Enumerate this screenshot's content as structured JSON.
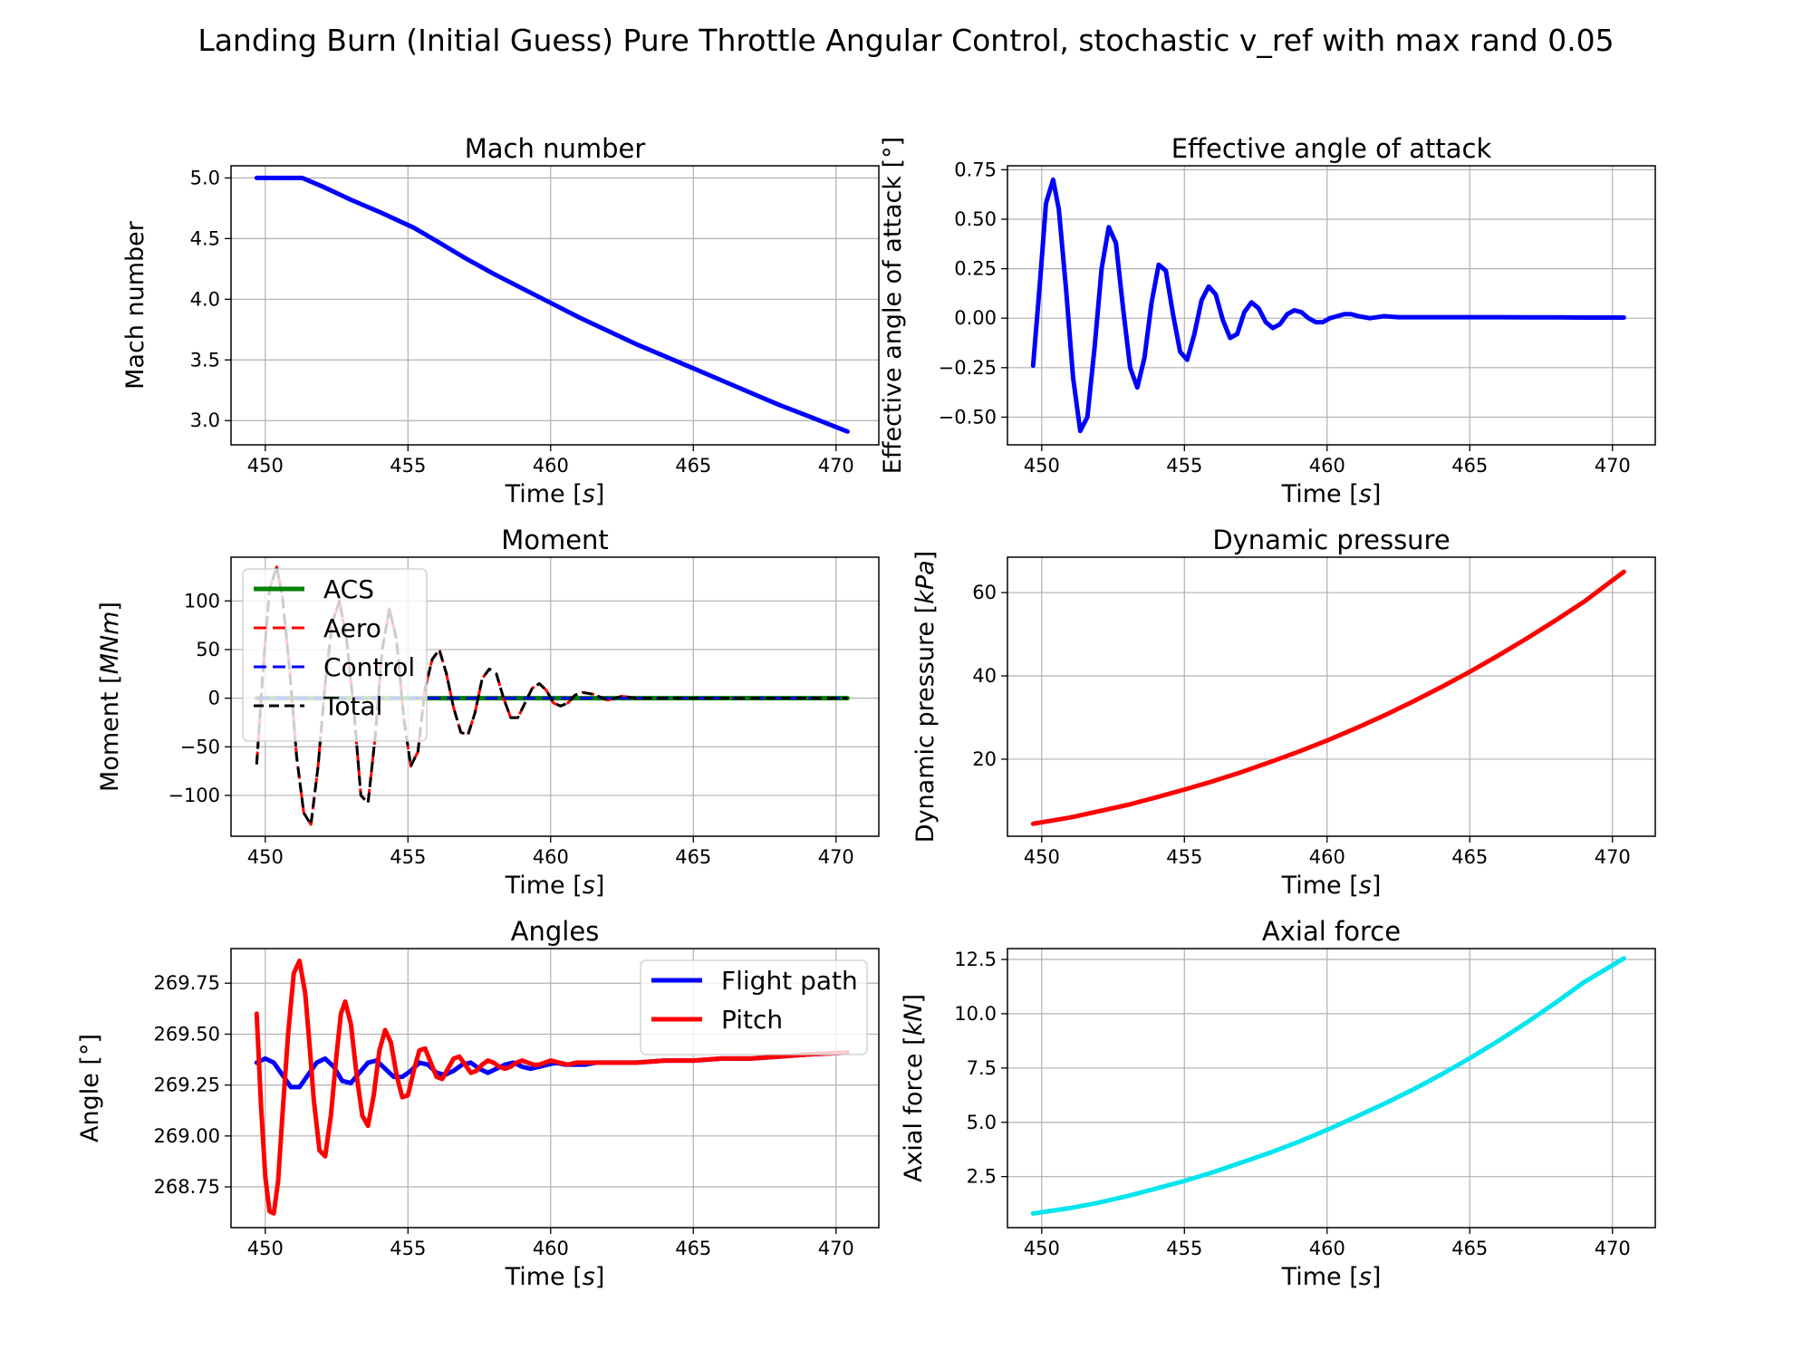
{
  "figure": {
    "suptitle": "Landing Burn (Initial Guess) Pure Throttle Angular Control, stochastic v_ref with max rand 0.05"
  },
  "chart_data": [
    {
      "id": "mach",
      "type": "line",
      "title": "Mach number",
      "xlabel": "Time [s]",
      "ylabel": "Mach number",
      "xlim": [
        448.8,
        471.5
      ],
      "ylim": [
        2.8,
        5.1
      ],
      "xticks": [
        450,
        455,
        460,
        465,
        470
      ],
      "xtick_labels": [
        "450",
        "455",
        "460",
        "465",
        "470"
      ],
      "yticks": [
        3.0,
        3.5,
        4.0,
        4.5,
        5.0
      ],
      "ytick_labels": [
        "3.0",
        "3.5",
        "4.0",
        "4.5",
        "5.0"
      ],
      "grid": true,
      "legend": null,
      "series": [
        {
          "color": "#0000ff",
          "width": 5,
          "dash": "",
          "x": [
            449.7,
            450.5,
            451.3,
            452.0,
            453.0,
            454.0,
            455.2,
            456.0,
            457.0,
            458.0,
            459.0,
            460.0,
            461.0,
            462.0,
            463.0,
            464.0,
            465.0,
            466.0,
            467.0,
            468.0,
            469.0,
            470.4
          ],
          "y": [
            5.0,
            5.0,
            5.0,
            4.93,
            4.82,
            4.72,
            4.59,
            4.48,
            4.34,
            4.21,
            4.09,
            3.97,
            3.85,
            3.74,
            3.63,
            3.53,
            3.43,
            3.33,
            3.23,
            3.13,
            3.04,
            2.91
          ]
        }
      ]
    },
    {
      "id": "aoa",
      "type": "line",
      "title": "Effective angle of attack",
      "xlabel": "Time [s]",
      "ylabel": "Effective angle of attack [°]",
      "xlim": [
        448.8,
        471.5
      ],
      "ylim": [
        -0.64,
        0.77
      ],
      "xticks": [
        450,
        455,
        460,
        465,
        470
      ],
      "xtick_labels": [
        "450",
        "455",
        "460",
        "465",
        "470"
      ],
      "yticks": [
        -0.5,
        -0.25,
        0.0,
        0.25,
        0.5,
        0.75
      ],
      "ytick_labels": [
        "−0.50",
        "−0.25",
        "0.00",
        "0.25",
        "0.50",
        "0.75"
      ],
      "grid": true,
      "legend": null,
      "series": [
        {
          "color": "#0000ff",
          "width": 5,
          "dash": "",
          "x": [
            449.7,
            449.95,
            450.15,
            450.4,
            450.6,
            450.85,
            451.1,
            451.35,
            451.6,
            451.85,
            452.1,
            452.35,
            452.6,
            452.85,
            453.1,
            453.35,
            453.6,
            453.85,
            454.1,
            454.35,
            454.6,
            454.85,
            455.1,
            455.35,
            455.6,
            455.85,
            456.1,
            456.35,
            456.6,
            456.85,
            457.1,
            457.35,
            457.6,
            457.85,
            458.1,
            458.35,
            458.6,
            458.85,
            459.1,
            459.35,
            459.6,
            459.85,
            460.1,
            460.35,
            460.6,
            460.85,
            461.1,
            461.5,
            462.0,
            462.5,
            463.0,
            464.0,
            465.0,
            466.0,
            467.0,
            468.0,
            469.0,
            470.4
          ],
          "y": [
            -0.24,
            0.2,
            0.58,
            0.7,
            0.55,
            0.15,
            -0.3,
            -0.57,
            -0.5,
            -0.15,
            0.25,
            0.46,
            0.38,
            0.05,
            -0.25,
            -0.35,
            -0.2,
            0.08,
            0.27,
            0.24,
            0.02,
            -0.17,
            -0.21,
            -0.08,
            0.09,
            0.16,
            0.12,
            -0.01,
            -0.1,
            -0.08,
            0.03,
            0.08,
            0.05,
            -0.02,
            -0.05,
            -0.03,
            0.02,
            0.04,
            0.03,
            0.0,
            -0.02,
            -0.02,
            0.0,
            0.01,
            0.02,
            0.02,
            0.01,
            0.0,
            0.01,
            0.005,
            0.005,
            0.005,
            0.005,
            0.005,
            0.004,
            0.004,
            0.003,
            0.003
          ]
        }
      ]
    },
    {
      "id": "moment",
      "type": "line",
      "title": "Moment",
      "xlabel": "Time [s]",
      "ylabel": "Moment [MNm]",
      "xlim": [
        448.8,
        471.5
      ],
      "ylim": [
        -142,
        145
      ],
      "xticks": [
        450,
        455,
        460,
        465,
        470
      ],
      "xtick_labels": [
        "450",
        "455",
        "460",
        "465",
        "470"
      ],
      "yticks": [
        -100,
        -50,
        0,
        50,
        100
      ],
      "ytick_labels": [
        "−100",
        "−50",
        "0",
        "50",
        "100"
      ],
      "grid": true,
      "legend": {
        "position": "upper left",
        "entries": [
          "ACS",
          "Aero",
          "Control",
          "Total"
        ]
      },
      "series": [
        {
          "name": "ACS",
          "color": "#008000",
          "width": 5,
          "dash": "",
          "x": [
            449.7,
            470.4
          ],
          "y": [
            0,
            0
          ]
        },
        {
          "name": "Aero",
          "color": "#ff0000",
          "width": 3,
          "dash": "14,7",
          "x": [
            449.7,
            449.95,
            450.15,
            450.4,
            450.6,
            450.85,
            451.1,
            451.35,
            451.6,
            451.85,
            452.1,
            452.35,
            452.6,
            452.85,
            453.1,
            453.35,
            453.6,
            453.85,
            454.1,
            454.35,
            454.6,
            454.85,
            455.1,
            455.35,
            455.6,
            455.85,
            456.1,
            456.35,
            456.6,
            456.85,
            457.1,
            457.35,
            457.6,
            457.85,
            458.1,
            458.35,
            458.6,
            458.85,
            459.1,
            459.35,
            459.6,
            459.85,
            460.1,
            460.35,
            460.6,
            460.85,
            461.1,
            461.5,
            462.0,
            462.5,
            463.0,
            464.0,
            465.0,
            466.0,
            467.0,
            468.0,
            469.0,
            470.4
          ],
          "y": [
            -68,
            40,
            112,
            135,
            105,
            30,
            -60,
            -118,
            -130,
            -70,
            15,
            78,
            100,
            60,
            -10,
            -100,
            -108,
            -40,
            50,
            92,
            60,
            -20,
            -70,
            -55,
            10,
            40,
            50,
            25,
            -10,
            -35,
            -38,
            -15,
            20,
            30,
            25,
            0,
            -20,
            -20,
            -5,
            10,
            15,
            8,
            -5,
            -8,
            -5,
            3,
            6,
            4,
            -2,
            2,
            0,
            0,
            0,
            0,
            0,
            0,
            0,
            0
          ]
        },
        {
          "name": "Control",
          "color": "#0000ff",
          "width": 3,
          "dash": "14,7",
          "x": [
            449.7,
            470.4
          ],
          "y": [
            0,
            0
          ]
        },
        {
          "name": "Total",
          "color": "#000000",
          "width": 3,
          "dash": "11,6",
          "x": [
            449.7,
            449.95,
            450.15,
            450.4,
            450.6,
            450.85,
            451.1,
            451.35,
            451.6,
            451.85,
            452.1,
            452.35,
            452.6,
            452.85,
            453.1,
            453.35,
            453.6,
            453.85,
            454.1,
            454.35,
            454.6,
            454.85,
            455.1,
            455.35,
            455.6,
            455.85,
            456.1,
            456.35,
            456.6,
            456.85,
            457.1,
            457.35,
            457.6,
            457.85,
            458.1,
            458.35,
            458.6,
            458.85,
            459.1,
            459.35,
            459.6,
            459.85,
            460.1,
            460.35,
            460.6,
            460.85,
            461.1,
            461.5,
            462.0,
            462.5,
            463.0,
            464.0,
            465.0,
            466.0,
            467.0,
            468.0,
            469.0,
            470.4
          ],
          "y": [
            -68,
            40,
            112,
            135,
            105,
            30,
            -60,
            -118,
            -130,
            -70,
            15,
            78,
            100,
            60,
            -10,
            -100,
            -108,
            -40,
            50,
            92,
            60,
            -20,
            -70,
            -55,
            10,
            40,
            50,
            25,
            -10,
            -35,
            -38,
            -15,
            20,
            30,
            25,
            0,
            -20,
            -20,
            -5,
            10,
            15,
            8,
            -5,
            -8,
            -5,
            3,
            6,
            4,
            -2,
            2,
            0,
            0,
            0,
            0,
            0,
            0,
            0,
            0
          ]
        }
      ]
    },
    {
      "id": "dynp",
      "type": "line",
      "title": "Dynamic pressure",
      "xlabel": "Time [s]",
      "ylabel": "Dynamic pressure [kPa]",
      "xlim": [
        448.8,
        471.5
      ],
      "ylim": [
        1.5,
        68.5
      ],
      "xticks": [
        450,
        455,
        460,
        465,
        470
      ],
      "xtick_labels": [
        "450",
        "455",
        "460",
        "465",
        "470"
      ],
      "yticks": [
        20,
        40,
        60
      ],
      "ytick_labels": [
        "20",
        "40",
        "60"
      ],
      "grid": true,
      "legend": null,
      "series": [
        {
          "color": "#ff0000",
          "width": 5,
          "dash": "",
          "x": [
            449.7,
            451.0,
            452.0,
            453.0,
            454.0,
            455.0,
            456.0,
            457.0,
            458.0,
            459.0,
            460.0,
            461.0,
            462.0,
            463.0,
            464.0,
            465.0,
            466.0,
            467.0,
            468.0,
            469.0,
            470.4
          ],
          "y": [
            4.5,
            6.0,
            7.5,
            9.0,
            10.8,
            12.7,
            14.7,
            16.9,
            19.3,
            21.8,
            24.5,
            27.4,
            30.5,
            33.8,
            37.3,
            41.0,
            44.9,
            49.0,
            53.3,
            57.8,
            65.0
          ]
        }
      ]
    },
    {
      "id": "angles",
      "type": "line",
      "title": "Angles",
      "xlabel": "Time [s]",
      "ylabel": "Angle [°]",
      "xlim": [
        448.8,
        471.5
      ],
      "ylim": [
        268.55,
        269.92
      ],
      "xticks": [
        450,
        455,
        460,
        465,
        470
      ],
      "xtick_labels": [
        "450",
        "455",
        "460",
        "465",
        "470"
      ],
      "yticks": [
        268.75,
        269.0,
        269.25,
        269.5,
        269.75
      ],
      "ytick_labels": [
        "268.75",
        "269.00",
        "269.25",
        "269.50",
        "269.75"
      ],
      "grid": true,
      "legend": {
        "position": "upper right",
        "entries": [
          "Flight path",
          "Pitch"
        ]
      },
      "series": [
        {
          "name": "Flight path",
          "color": "#0000ff",
          "width": 5,
          "dash": "",
          "x": [
            449.7,
            450.0,
            450.3,
            450.6,
            450.9,
            451.2,
            451.5,
            451.8,
            452.1,
            452.4,
            452.7,
            453.0,
            453.3,
            453.6,
            453.9,
            454.2,
            454.5,
            454.8,
            455.1,
            455.4,
            455.7,
            456.0,
            456.3,
            456.6,
            456.9,
            457.2,
            457.5,
            457.8,
            458.1,
            458.4,
            458.7,
            459.0,
            459.3,
            459.6,
            459.9,
            460.2,
            460.5,
            460.8,
            461.2,
            461.6,
            462.0,
            463.0,
            464.0,
            465.0,
            466.0,
            467.0,
            468.0,
            469.0,
            470.4
          ],
          "y": [
            269.36,
            269.38,
            269.36,
            269.3,
            269.24,
            269.24,
            269.3,
            269.36,
            269.38,
            269.34,
            269.27,
            269.26,
            269.31,
            269.36,
            269.37,
            269.33,
            269.29,
            269.29,
            269.32,
            269.36,
            269.35,
            269.31,
            269.3,
            269.32,
            269.35,
            269.36,
            269.33,
            269.31,
            269.33,
            269.35,
            269.36,
            269.34,
            269.33,
            269.34,
            269.35,
            269.36,
            269.35,
            269.35,
            269.35,
            269.36,
            269.36,
            269.36,
            269.37,
            269.37,
            269.38,
            269.38,
            269.39,
            269.4,
            269.41
          ]
        },
        {
          "name": "Pitch",
          "color": "#ff0000",
          "width": 5,
          "dash": "",
          "x": [
            449.7,
            449.85,
            450.0,
            450.15,
            450.3,
            450.45,
            450.6,
            450.8,
            451.0,
            451.2,
            451.4,
            451.55,
            451.7,
            451.9,
            452.1,
            452.3,
            452.5,
            452.65,
            452.8,
            453.0,
            453.2,
            453.4,
            453.6,
            453.8,
            454.0,
            454.2,
            454.4,
            454.6,
            454.8,
            455.0,
            455.2,
            455.4,
            455.6,
            455.8,
            456.0,
            456.2,
            456.4,
            456.6,
            456.8,
            457.0,
            457.2,
            457.4,
            457.6,
            457.8,
            458.0,
            458.2,
            458.4,
            458.6,
            458.8,
            459.0,
            459.2,
            459.4,
            459.6,
            459.8,
            460.0,
            460.3,
            460.6,
            460.9,
            461.2,
            461.6,
            462.0,
            463.0,
            464.0,
            465.0,
            466.0,
            467.0,
            468.0,
            469.0,
            470.4
          ],
          "y": [
            269.6,
            269.15,
            268.8,
            268.63,
            268.62,
            268.78,
            269.1,
            269.5,
            269.8,
            269.86,
            269.7,
            269.45,
            269.18,
            268.93,
            268.9,
            269.1,
            269.4,
            269.6,
            269.66,
            269.55,
            269.3,
            269.1,
            269.05,
            269.2,
            269.42,
            269.52,
            269.46,
            269.3,
            269.19,
            269.2,
            269.32,
            269.42,
            269.43,
            269.36,
            269.29,
            269.28,
            269.33,
            269.38,
            269.39,
            269.35,
            269.31,
            269.32,
            269.35,
            269.37,
            269.36,
            269.34,
            269.33,
            269.34,
            269.36,
            269.37,
            269.36,
            269.35,
            269.35,
            269.36,
            269.37,
            269.36,
            269.35,
            269.36,
            269.36,
            269.36,
            269.36,
            269.36,
            269.37,
            269.37,
            269.38,
            269.38,
            269.39,
            269.4,
            269.41
          ]
        }
      ]
    },
    {
      "id": "axial",
      "type": "line",
      "title": "Axial force",
      "xlabel": "Time [s]",
      "ylabel": "Axial force [kN]",
      "xlim": [
        448.8,
        471.5
      ],
      "ylim": [
        0.15,
        13.0
      ],
      "xticks": [
        450,
        455,
        460,
        465,
        470
      ],
      "xtick_labels": [
        "450",
        "455",
        "460",
        "465",
        "470"
      ],
      "yticks": [
        2.5,
        5.0,
        7.5,
        10.0,
        12.5
      ],
      "ytick_labels": [
        "2.5",
        "5.0",
        "7.5",
        "10.0",
        "12.5"
      ],
      "grid": true,
      "legend": null,
      "series": [
        {
          "color": "#00e5ee",
          "width": 5,
          "dash": "",
          "x": [
            449.7,
            451.0,
            452.0,
            453.0,
            454.0,
            455.0,
            456.0,
            457.0,
            458.0,
            459.0,
            460.0,
            461.0,
            462.0,
            463.0,
            464.0,
            465.0,
            466.0,
            467.0,
            468.0,
            469.0,
            470.4
          ],
          "y": [
            0.8,
            1.05,
            1.3,
            1.6,
            1.95,
            2.3,
            2.7,
            3.15,
            3.6,
            4.1,
            4.65,
            5.25,
            5.85,
            6.5,
            7.2,
            7.95,
            8.75,
            9.6,
            10.5,
            11.45,
            12.55
          ]
        }
      ]
    }
  ]
}
